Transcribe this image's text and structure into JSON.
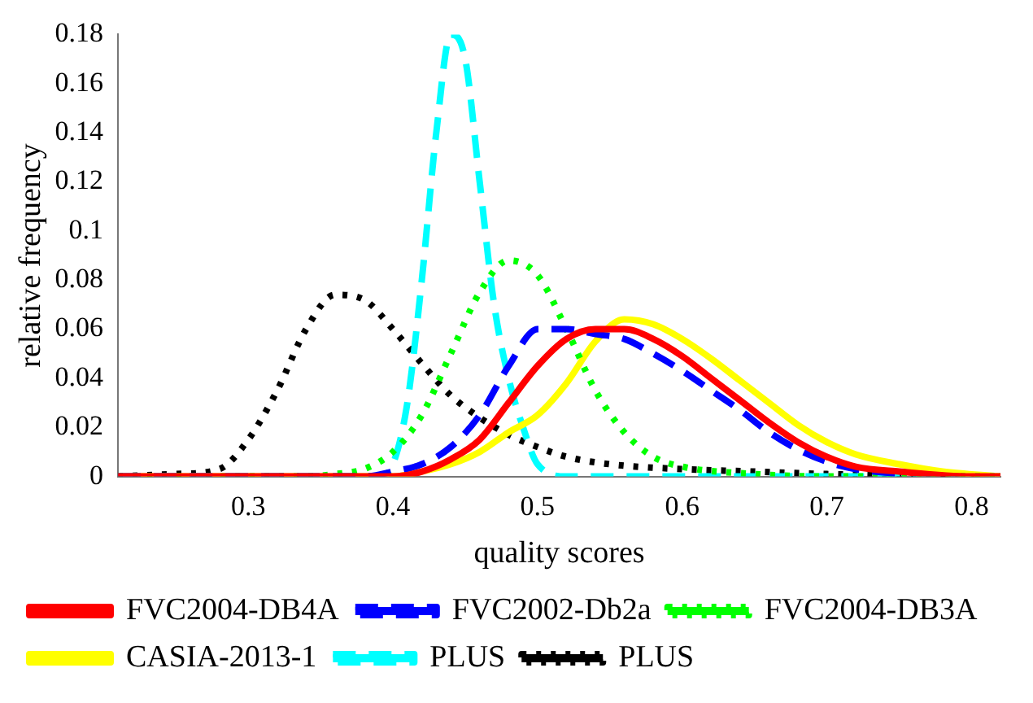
{
  "chart_data": {
    "type": "line",
    "xlabel": "quality scores",
    "ylabel": "relative frequency",
    "xlim": [
      0.21,
      0.82
    ],
    "xticks": [
      0.3,
      0.4,
      0.5,
      0.6,
      0.7,
      0.8
    ],
    "ylim": [
      0,
      0.18
    ],
    "yticks": [
      0,
      0.02,
      0.04,
      0.06,
      0.08,
      {
        "value": 0.1,
        "label": "0.1"
      },
      0.12,
      0.14,
      0.16,
      0.18
    ],
    "grid": false,
    "legend": "bottom",
    "marker": "none",
    "series": [
      {
        "name": "FVC2004-DB4A",
        "color": "#ff0000",
        "line_style": "solid",
        "x": [
          0.21,
          0.4,
          0.42,
          0.44,
          0.46,
          0.48,
          0.5,
          0.52,
          0.54,
          0.56,
          0.58,
          0.6,
          0.62,
          0.64,
          0.66,
          0.68,
          0.7,
          0.72,
          0.75,
          0.8,
          0.82
        ],
        "values": [
          0,
          0,
          0.002,
          0.007,
          0.015,
          0.03,
          0.045,
          0.056,
          0.06,
          0.06,
          0.056,
          0.049,
          0.04,
          0.031,
          0.022,
          0.014,
          0.008,
          0.004,
          0.002,
          0,
          0
        ]
      },
      {
        "name": "FVC2002-Db2a",
        "color": "#0000ff",
        "line_style": "dashed",
        "x": [
          0.21,
          0.38,
          0.4,
          0.42,
          0.44,
          0.46,
          0.48,
          0.5,
          0.52,
          0.54,
          0.56,
          0.58,
          0.6,
          0.62,
          0.64,
          0.66,
          0.68,
          0.7,
          0.72,
          0.75
        ],
        "values": [
          0,
          0,
          0.002,
          0.005,
          0.012,
          0.025,
          0.045,
          0.06,
          0.06,
          0.058,
          0.056,
          0.05,
          0.043,
          0.035,
          0.027,
          0.018,
          0.011,
          0.006,
          0.003,
          0.001
        ]
      },
      {
        "name": "FVC2004-DB3A",
        "color": "#00ff00",
        "line_style": "dotted",
        "x": [
          0.21,
          0.34,
          0.36,
          0.38,
          0.4,
          0.42,
          0.44,
          0.46,
          0.48,
          0.5,
          0.52,
          0.54,
          0.56,
          0.58,
          0.6,
          0.65,
          0.7,
          0.82
        ],
        "values": [
          0,
          0,
          0.001,
          0.003,
          0.01,
          0.025,
          0.05,
          0.075,
          0.088,
          0.082,
          0.06,
          0.035,
          0.018,
          0.008,
          0.004,
          0.001,
          0,
          0
        ]
      },
      {
        "name": "CASIA-2013-1",
        "color": "#ffff00",
        "line_style": "solid",
        "x": [
          0.21,
          0.4,
          0.42,
          0.44,
          0.46,
          0.48,
          0.5,
          0.52,
          0.54,
          0.56,
          0.58,
          0.6,
          0.62,
          0.64,
          0.66,
          0.68,
          0.7,
          0.72,
          0.75,
          0.78,
          0.82
        ],
        "values": [
          0,
          0,
          0.002,
          0.005,
          0.01,
          0.018,
          0.025,
          0.038,
          0.055,
          0.064,
          0.062,
          0.056,
          0.048,
          0.039,
          0.03,
          0.021,
          0.014,
          0.009,
          0.005,
          0.002,
          0
        ]
      },
      {
        "name": "PLUS",
        "color": "#00ffff",
        "line_style": "dashed",
        "x": [
          0.21,
          0.39,
          0.4,
          0.41,
          0.42,
          0.43,
          0.44,
          0.45,
          0.46,
          0.47,
          0.48,
          0.49,
          0.5,
          0.52,
          0.82
        ],
        "values": [
          0,
          0,
          0.005,
          0.03,
          0.08,
          0.14,
          0.18,
          0.17,
          0.12,
          0.07,
          0.04,
          0.02,
          0.005,
          0,
          0
        ]
      },
      {
        "name": "PLUS",
        "color": "#000000",
        "line_style": "dotted",
        "x": [
          0.21,
          0.25,
          0.28,
          0.3,
          0.32,
          0.34,
          0.36,
          0.38,
          0.4,
          0.42,
          0.44,
          0.46,
          0.48,
          0.5,
          0.52,
          0.55,
          0.6,
          0.65,
          0.7,
          0.8,
          0.82
        ],
        "values": [
          0,
          0.001,
          0.003,
          0.015,
          0.035,
          0.06,
          0.074,
          0.072,
          0.06,
          0.046,
          0.033,
          0.024,
          0.017,
          0.012,
          0.008,
          0.005,
          0.003,
          0.002,
          0.001,
          0,
          0
        ]
      }
    ]
  }
}
